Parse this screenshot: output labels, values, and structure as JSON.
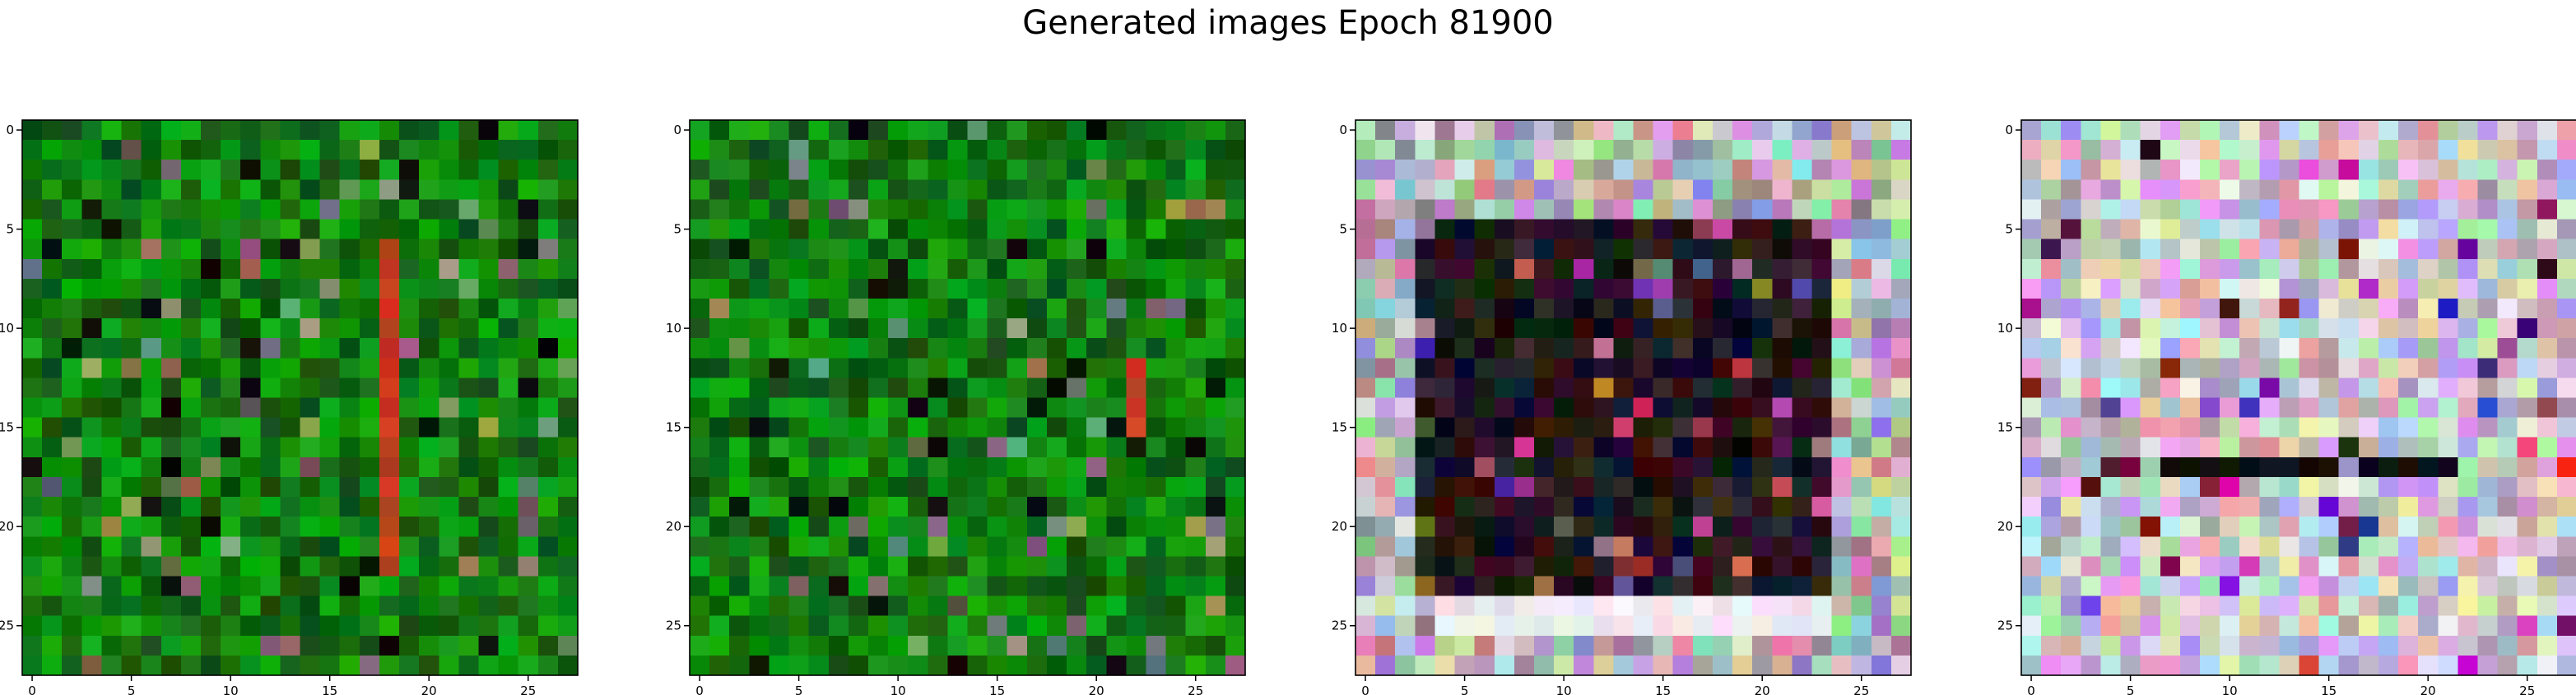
{
  "figure": {
    "title": "Generated images Epoch 81900"
  },
  "chart_data": {
    "type": "image-grid",
    "grid_size": [
      28,
      28
    ],
    "x_ticks": [
      "0",
      "5",
      "10",
      "15",
      "20",
      "25"
    ],
    "y_ticks": [
      "0",
      "5",
      "10",
      "15",
      "20",
      "25"
    ],
    "images": [
      {
        "palette": "green-noise",
        "base": "#0a6e0a",
        "accent_column": 18,
        "accent_rows": [
          6,
          22
        ],
        "accent_color": "#c0341a"
      },
      {
        "palette": "green-noise",
        "base": "#087a0c",
        "accent_column": 22,
        "accent_rows": [
          12,
          15
        ],
        "accent_color": "#a8441c"
      },
      {
        "palette": "dark-frame-pastel-border",
        "frame_rows": [
          5,
          23
        ],
        "frame_cols": [
          3,
          23
        ],
        "inner": "#1a0f12",
        "border": "#d8d0e0"
      },
      {
        "palette": "pastel-noise",
        "base": "#e6d2e8",
        "dark_band_row": 17,
        "dark_band_color": "#111111"
      }
    ]
  }
}
